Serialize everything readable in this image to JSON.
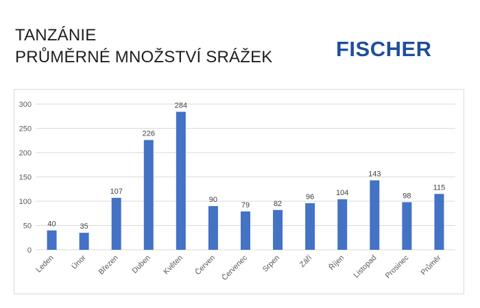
{
  "header": {
    "title_line1": "TANZÁNIE",
    "title_line2": "PRŮMĚRNÉ MNOŽSTVÍ SRÁŽEK",
    "logo_text": "FISCHER"
  },
  "colors": {
    "bar": "#4472c4",
    "grid": "#d9d9d9",
    "logo": "#1f4e9a"
  },
  "chart_data": {
    "type": "bar",
    "title": "",
    "xlabel": "",
    "ylabel": "",
    "categories": [
      "Leden",
      "Únor",
      "Březen",
      "Duben",
      "Květen",
      "Červen",
      "Červenec",
      "Srpen",
      "Září",
      "Říjen",
      "Listopad",
      "Prosinec",
      "Průměr"
    ],
    "values": [
      40,
      35,
      107,
      226,
      284,
      90,
      79,
      82,
      96,
      104,
      143,
      98,
      115
    ],
    "ylim": [
      0,
      300
    ],
    "yticks": [
      0,
      50,
      100,
      150,
      200,
      250,
      300
    ],
    "grid": true,
    "legend": "none"
  }
}
